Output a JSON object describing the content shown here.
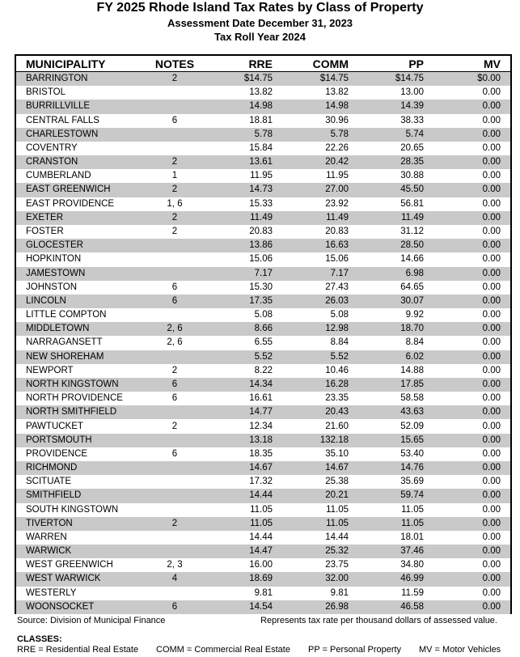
{
  "header": {
    "title": "FY 2025 Rhode Island Tax Rates by Class of Property",
    "subtitle": "Assessment Date December 31, 2023",
    "subtitle2": "Tax Roll Year 2024"
  },
  "table": {
    "columns": [
      "MUNICIPALITY",
      "NOTES",
      "RRE",
      "COMM",
      "PP",
      "MV"
    ],
    "rows": [
      [
        "BARRINGTON",
        "2",
        "$14.75",
        "$14.75",
        "$14.75",
        "$0.00"
      ],
      [
        "BRISTOL",
        null,
        "13.82",
        "13.82",
        "13.00",
        "0.00"
      ],
      [
        "BURRILLVILLE",
        null,
        "14.98",
        "14.98",
        "14.39",
        "0.00"
      ],
      [
        "CENTRAL FALLS",
        "6",
        "18.81",
        "30.96",
        "38.33",
        "0.00"
      ],
      [
        "CHARLESTOWN",
        null,
        "5.78",
        "5.78",
        "5.74",
        "0.00"
      ],
      [
        "COVENTRY",
        null,
        "15.84",
        "22.26",
        "20.65",
        "0.00"
      ],
      [
        "CRANSTON",
        "2",
        "13.61",
        "20.42",
        "28.35",
        "0.00"
      ],
      [
        "CUMBERLAND",
        "1",
        "11.95",
        "11.95",
        "30.88",
        "0.00"
      ],
      [
        "EAST GREENWICH",
        "2",
        "14.73",
        "27.00",
        "45.50",
        "0.00"
      ],
      [
        "EAST PROVIDENCE",
        "1, 6",
        "15.33",
        "23.92",
        "56.81",
        "0.00"
      ],
      [
        "EXETER",
        "2",
        "11.49",
        "11.49",
        "11.49",
        "0.00"
      ],
      [
        "FOSTER",
        "2",
        "20.83",
        "20.83",
        "31.12",
        "0.00"
      ],
      [
        "GLOCESTER",
        null,
        "13.86",
        "16.63",
        "28.50",
        "0.00"
      ],
      [
        "HOPKINTON",
        null,
        "15.06",
        "15.06",
        "14.66",
        "0.00"
      ],
      [
        "JAMESTOWN",
        null,
        "7.17",
        "7.17",
        "6.98",
        "0.00"
      ],
      [
        "JOHNSTON",
        "6",
        "15.30",
        "27.43",
        "64.65",
        "0.00"
      ],
      [
        "LINCOLN",
        "6",
        "17.35",
        "26.03",
        "30.07",
        "0.00"
      ],
      [
        "LITTLE COMPTON",
        null,
        "5.08",
        "5.08",
        "9.92",
        "0.00"
      ],
      [
        "MIDDLETOWN",
        "2, 6",
        "8.66",
        "12.98",
        "18.70",
        "0.00"
      ],
      [
        "NARRAGANSETT",
        "2, 6",
        "6.55",
        "8.84",
        "8.84",
        "0.00"
      ],
      [
        "NEW SHOREHAM",
        null,
        "5.52",
        "5.52",
        "6.02",
        "0.00"
      ],
      [
        "NEWPORT",
        "2",
        "8.22",
        "10.46",
        "14.88",
        "0.00"
      ],
      [
        "NORTH KINGSTOWN",
        "6",
        "14.34",
        "16.28",
        "17.85",
        "0.00"
      ],
      [
        "NORTH PROVIDENCE",
        "6",
        "16.61",
        "23.35",
        "58.58",
        "0.00"
      ],
      [
        "NORTH SMITHFIELD",
        null,
        "14.77",
        "20.43",
        "43.63",
        "0.00"
      ],
      [
        "PAWTUCKET",
        "2",
        "12.34",
        "21.60",
        "52.09",
        "0.00"
      ],
      [
        "PORTSMOUTH",
        null,
        "13.18",
        "132.18",
        "15.65",
        "0.00"
      ],
      [
        "PROVIDENCE",
        "6",
        "18.35",
        "35.10",
        "53.40",
        "0.00"
      ],
      [
        "RICHMOND",
        null,
        "14.67",
        "14.67",
        "14.76",
        "0.00"
      ],
      [
        "SCITUATE",
        null,
        "17.32",
        "25.38",
        "35.69",
        "0.00"
      ],
      [
        "SMITHFIELD",
        null,
        "14.44",
        "20.21",
        "59.74",
        "0.00"
      ],
      [
        "SOUTH KINGSTOWN",
        null,
        "11.05",
        "11.05",
        "11.05",
        "0.00"
      ],
      [
        "TIVERTON",
        "2",
        "11.05",
        "11.05",
        "11.05",
        "0.00"
      ],
      [
        "WARREN",
        null,
        "14.44",
        "14.44",
        "18.01",
        "0.00"
      ],
      [
        "WARWICK",
        null,
        "14.47",
        "25.32",
        "37.46",
        "0.00"
      ],
      [
        "WEST GREENWICH",
        "2, 3",
        "16.00",
        "23.75",
        "34.80",
        "0.00"
      ],
      [
        "WEST WARWICK",
        "4",
        "18.69",
        "32.00",
        "46.99",
        "0.00"
      ],
      [
        "WESTERLY",
        null,
        "9.81",
        "9.81",
        "11.59",
        "0.00"
      ],
      [
        "WOONSOCKET",
        "6",
        "14.54",
        "26.98",
        "46.58",
        "0.00"
      ]
    ]
  },
  "footer": {
    "source": "Source:  Division of Municipal Finance",
    "note": "Represents tax rate per thousand dollars of assessed value.",
    "classes_title": "CLASSES:",
    "classes": [
      "RRE = Residential Real Estate",
      "COMM = Commercial Real Estate",
      "PP = Personal Property",
      "MV = Motor Vehicles"
    ]
  }
}
